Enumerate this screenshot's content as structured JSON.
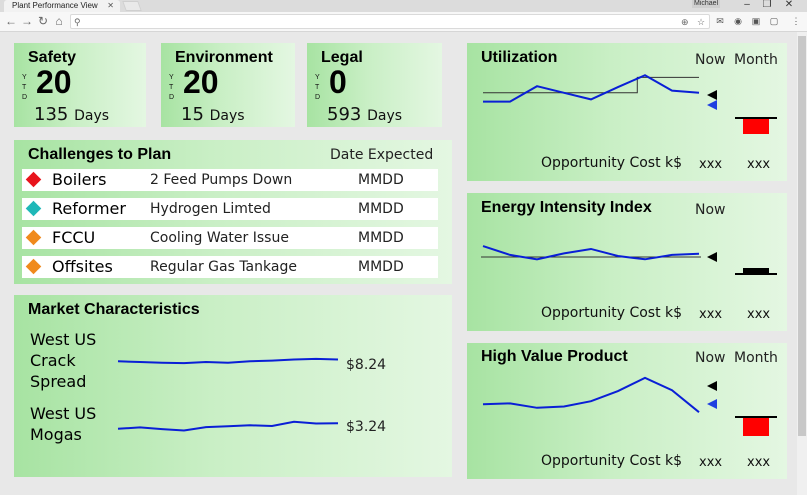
{
  "browser": {
    "tab_title": "Plant Performance View",
    "profile": "Michael",
    "address": ""
  },
  "kpis": [
    {
      "title": "Safety",
      "ytd": "YTD",
      "value": "20",
      "days_value": "135",
      "days_label": "Days"
    },
    {
      "title": "Environment",
      "ytd": "YTD",
      "value": "20",
      "days_value": "15",
      "days_label": "Days"
    },
    {
      "title": "Legal",
      "ytd": "YTD",
      "value": "0",
      "days_value": "593",
      "days_label": "Days"
    }
  ],
  "challenges": {
    "title": "Challenges to Plan",
    "date_header": "Date Expected",
    "rows": [
      {
        "unit": "Boilers",
        "issue": "2 Feed Pumps Down",
        "date": "MMDD",
        "color": "#e8141c"
      },
      {
        "unit": "Reformer",
        "issue": "Hydrogen Limted",
        "date": "MMDD",
        "color": "#1fb8b8"
      },
      {
        "unit": "FCCU",
        "issue": "Cooling Water Issue",
        "date": "MMDD",
        "color": "#f08a1c"
      },
      {
        "unit": "Offsites",
        "issue": "Regular Gas Tankage",
        "date": "MMDD",
        "color": "#f08a1c"
      }
    ]
  },
  "market": {
    "title": "Market Characteristics",
    "items": [
      {
        "label": "West US Crack Spread",
        "value": "$8.24",
        "trend": [
          0.55,
          0.5,
          0.45,
          0.42,
          0.5,
          0.45,
          0.55,
          0.6,
          0.68,
          0.72,
          0.68
        ]
      },
      {
        "label": "West US Mogas",
        "value": "$3.24",
        "trend": [
          0.3,
          0.4,
          0.28,
          0.18,
          0.42,
          0.48,
          0.55,
          0.5,
          0.8,
          0.68,
          0.7
        ]
      }
    ]
  },
  "utilization": {
    "title": "Utilization",
    "now": "Now",
    "month": "Month",
    "cost_label": "Opportunity Cost k$",
    "cost_now": "xxx",
    "cost_month": "xxx",
    "trend": [
      0.35,
      0.35,
      0.7,
      0.55,
      0.4,
      0.68,
      0.95,
      0.6,
      0.55
    ],
    "target_step": [
      0.55,
      0.55,
      0.55,
      0.55,
      0.55,
      0.9,
      0.9,
      0.9
    ],
    "month_status_color": "#ff0000"
  },
  "energy": {
    "title": "Energy Intensity Index",
    "now": "Now",
    "cost_label": "Opportunity Cost k$",
    "cost_now": "xxx",
    "cost_month": "xxx",
    "trend": [
      0.95,
      0.55,
      0.35,
      0.62,
      0.82,
      0.5,
      0.35,
      0.55,
      0.6
    ]
  },
  "hvp": {
    "title": "High Value Product",
    "now": "Now",
    "month": "Month",
    "cost_label": "Opportunity Cost k$",
    "cost_now": "xxx",
    "cost_month": "xxx",
    "trend": [
      0.38,
      0.4,
      0.3,
      0.33,
      0.45,
      0.68,
      0.98,
      0.7,
      0.2
    ],
    "target_step": [
      0.38,
      0.38,
      0.38,
      0.38,
      0.38,
      0.95,
      0.95,
      0.95
    ],
    "month_status_color": "#ff0000"
  },
  "colors": {
    "trend_line": "#0a1fd6",
    "now_marker": "#000000",
    "month_marker": "#1f3fe0"
  }
}
